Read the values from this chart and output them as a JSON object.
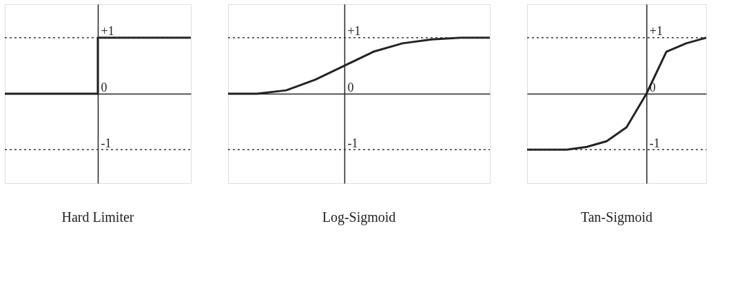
{
  "chart_data": [
    {
      "type": "step",
      "title": "Hard Limiter",
      "categories": [
        null,
        null,
        null
      ],
      "values": [
        0,
        1,
        1
      ],
      "color": "#222222",
      "ylim": [
        -1.6,
        1.6
      ],
      "yticks": [
        {
          "value": 1,
          "label": "+1"
        },
        0,
        {
          "value": -1,
          "label": "-1"
        }
      ],
      "tick_labels": "y",
      "grid": false,
      "ref_lines": [
        {
          "axis": "y",
          "value": 1,
          "line_style": "dotted"
        },
        {
          "axis": "y",
          "value": -1,
          "line_style": "dotted"
        }
      ]
    },
    {
      "type": "line",
      "title": "Log-Sigmoid",
      "categories": [
        null,
        null,
        null,
        null,
        null,
        null,
        null,
        null,
        null,
        null
      ],
      "values": [
        0,
        0,
        0.06,
        0.25,
        0.5,
        0.75,
        0.9,
        0.97,
        1,
        1
      ],
      "color": "#222222",
      "ylim": [
        -1.6,
        1.6
      ],
      "yticks": [
        {
          "value": 1,
          "label": "+1"
        },
        0,
        {
          "value": -1,
          "label": "-1"
        }
      ],
      "tick_labels": "y",
      "grid": false,
      "ref_lines": [
        {
          "axis": "y",
          "value": 1,
          "line_style": "dotted"
        },
        {
          "axis": "y",
          "value": -1,
          "line_style": "dotted"
        }
      ]
    },
    {
      "type": "line",
      "title": "Tan-Sigmoid",
      "categories": [
        null,
        null,
        null,
        null,
        null,
        null,
        null,
        null,
        null,
        null
      ],
      "values": [
        -1,
        -1,
        -1,
        -0.95,
        -0.85,
        -0.6,
        0,
        0.75,
        0.9,
        1
      ],
      "color": "#222222",
      "ylim": [
        -1.6,
        1.6
      ],
      "yticks": [
        {
          "value": 1,
          "label": "+1"
        },
        0,
        {
          "value": -1,
          "label": "-1"
        }
      ],
      "tick_labels": "y",
      "grid": false,
      "ref_lines": [
        {
          "axis": "y",
          "value": 1,
          "line_style": "dotted"
        },
        {
          "axis": "y",
          "value": -1,
          "line_style": "dotted"
        }
      ]
    }
  ]
}
